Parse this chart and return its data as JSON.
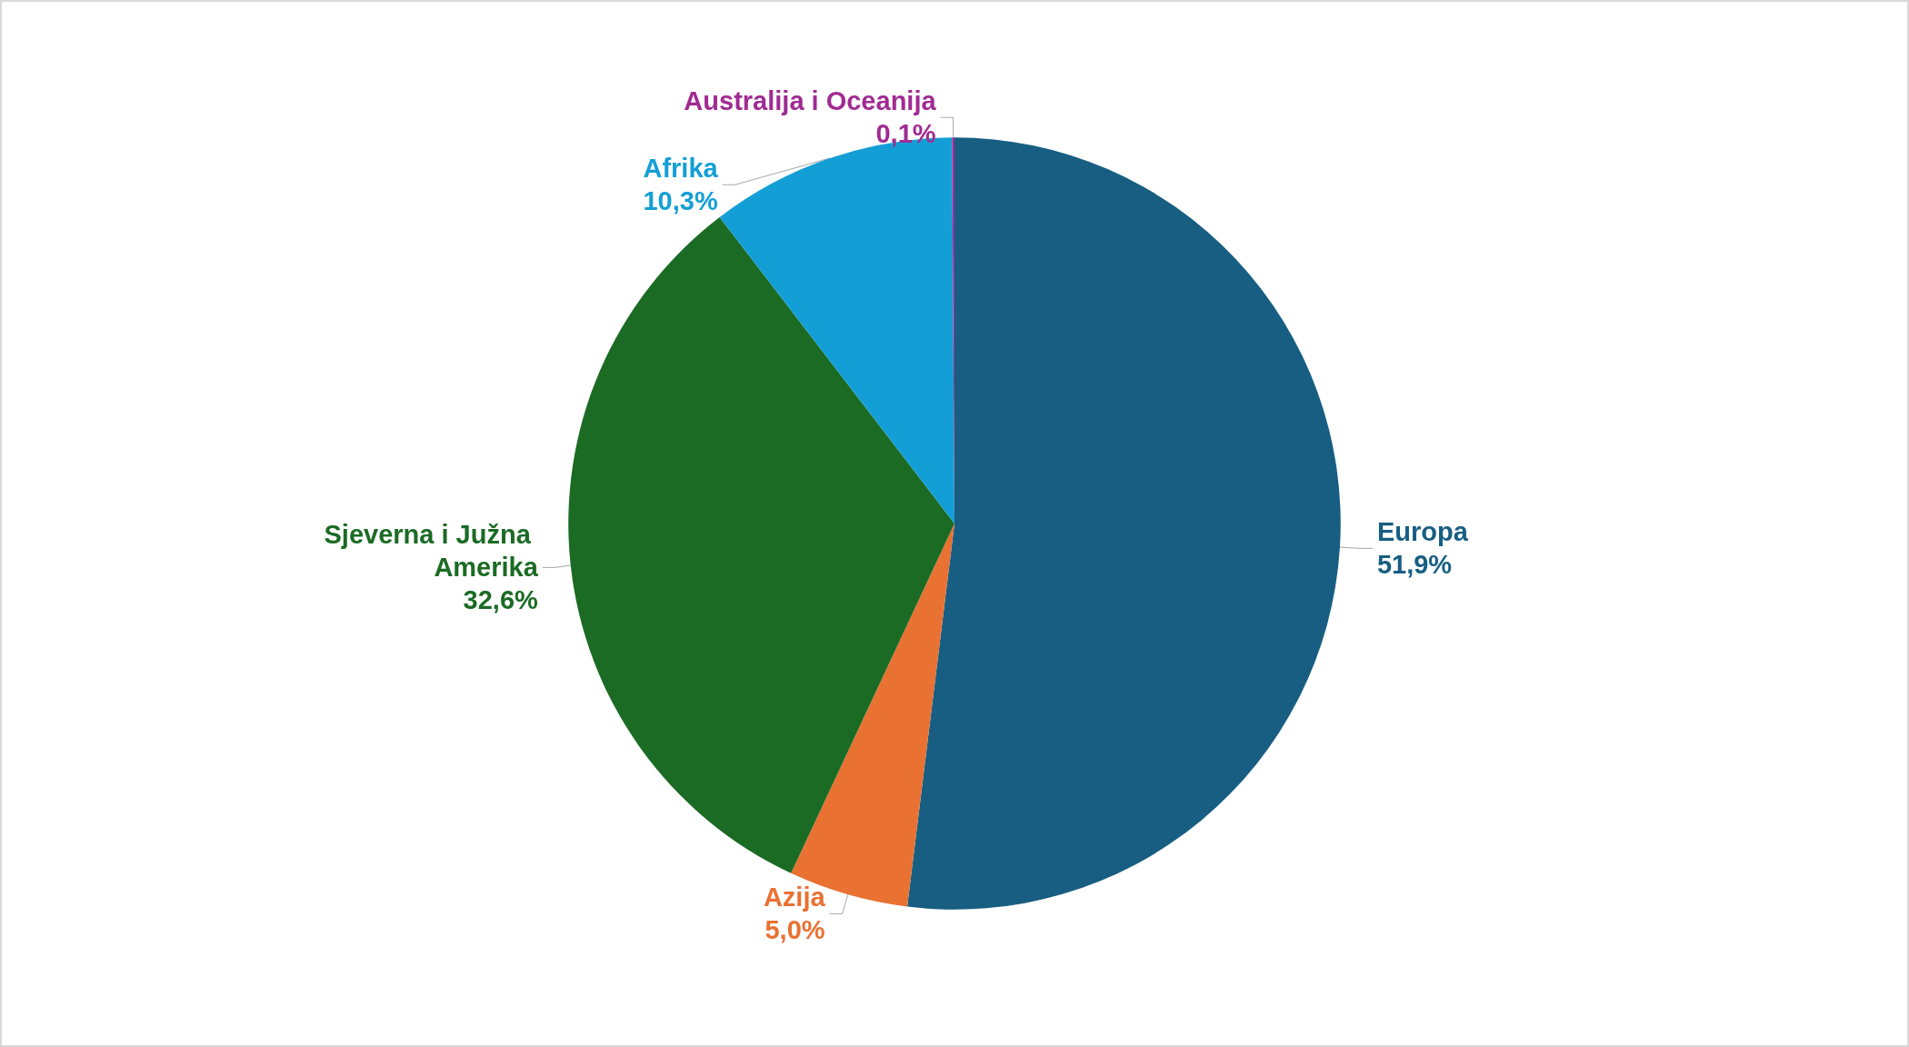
{
  "chart_data": {
    "type": "pie",
    "categories": [
      "Europa",
      "Azija",
      "Sjeverna i Južna Amerika",
      "Afrika",
      "Australija i Oceanija"
    ],
    "values": [
      51.9,
      5.0,
      32.6,
      10.3,
      0.1
    ],
    "value_labels": [
      "51,9%",
      "5,0%",
      "32,6%",
      "10,3%",
      "0,1%"
    ],
    "colors": [
      "#175e82",
      "#e97132",
      "#1b6b24",
      "#139fd6",
      "#a02b93"
    ],
    "legend": false
  }
}
